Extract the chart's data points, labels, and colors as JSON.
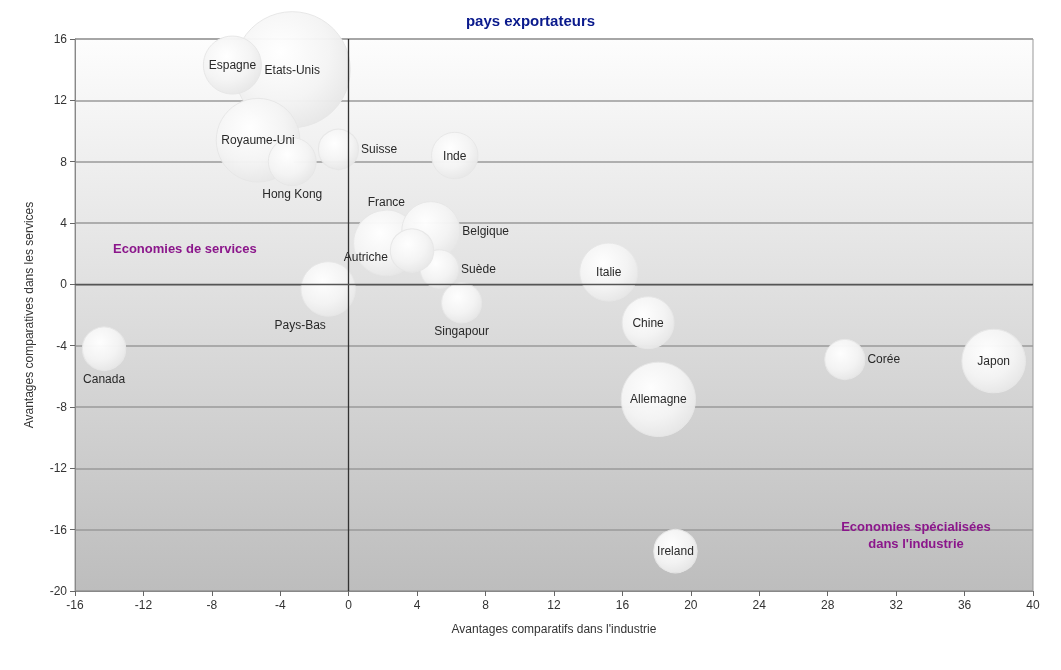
{
  "chart_data": {
    "type": "bubble",
    "title": "pays exportateurs",
    "xlabel": "Avantages comparatifs dans l'industrie",
    "ylabel": "Avantages comparatives dans les services",
    "annotations": [
      "Economies de services",
      "Economies spécialisées\ndans l'industrie"
    ],
    "xlim": [
      -16,
      40
    ],
    "xticks": [
      -16,
      -12,
      -8,
      -4,
      0,
      4,
      8,
      12,
      16,
      20,
      24,
      28,
      32,
      36,
      40
    ],
    "ylim": [
      -20,
      16
    ],
    "yticks": [
      -20,
      -16,
      -12,
      -8,
      -4,
      0,
      4,
      8,
      12,
      16
    ],
    "grid": "y",
    "legend": false,
    "marker": "circle",
    "ref_lines": [
      {
        "axis": "x",
        "value": 0,
        "color": "#333333"
      },
      {
        "axis": "y",
        "value": 0,
        "color": "#555555"
      }
    ],
    "series": [
      {
        "name": "Etats-Unis",
        "color": "#e6e6e6",
        "x": [
          -3.3
        ],
        "values": [
          14.0
        ],
        "sizes": [
          1
        ]
      },
      {
        "name": "Espagne",
        "color": "#e6e6e6",
        "x": [
          -6.8
        ],
        "values": [
          14.3
        ],
        "sizes": [
          0.25
        ]
      },
      {
        "name": "Royaume-Uni",
        "color": "#e6e6e6",
        "x": [
          -5.3
        ],
        "values": [
          9.4
        ],
        "sizes": [
          0.52
        ]
      },
      {
        "name": "Hong Kong",
        "color": "#e6e6e6",
        "x": [
          -3.3
        ],
        "values": [
          8.0
        ],
        "sizes": [
          0.17
        ]
      },
      {
        "name": "Suisse",
        "color": "#e6e6e6",
        "x": [
          -0.6
        ],
        "values": [
          8.8
        ],
        "sizes": [
          0.12
        ]
      },
      {
        "name": "Inde",
        "color": "#e6e6e6",
        "x": [
          6.2
        ],
        "values": [
          8.4
        ],
        "sizes": [
          0.16
        ]
      },
      {
        "name": "France",
        "color": "#e6e6e6",
        "x": [
          2.2
        ],
        "values": [
          2.7
        ],
        "sizes": [
          0.32
        ]
      },
      {
        "name": "Belgique",
        "color": "#e6e6e6",
        "x": [
          4.8
        ],
        "values": [
          3.5
        ],
        "sizes": [
          0.25
        ]
      },
      {
        "name": "Suède",
        "color": "#e6e6e6",
        "x": [
          5.3
        ],
        "values": [
          1.0
        ],
        "sizes": [
          0.11
        ]
      },
      {
        "name": "Singapour",
        "color": "#e6e6e6",
        "x": [
          6.6
        ],
        "values": [
          -1.2
        ],
        "sizes": [
          0.12
        ]
      },
      {
        "name": "Pays-Bas",
        "color": "#e6e6e6",
        "x": [
          -1.2
        ],
        "values": [
          -0.3
        ],
        "sizes": [
          0.22
        ]
      },
      {
        "name": "Italie",
        "color": "#e6e6e6",
        "x": [
          15.2
        ],
        "values": [
          0.8
        ],
        "sizes": [
          0.25
        ]
      },
      {
        "name": "Chine",
        "color": "#e6e6e6",
        "x": [
          17.5
        ],
        "values": [
          -2.5
        ],
        "sizes": [
          0.2
        ]
      },
      {
        "name": "Canada",
        "color": "#e6e6e6",
        "x": [
          -14.3
        ],
        "values": [
          -4.2
        ],
        "sizes": [
          0.14
        ]
      },
      {
        "name": "Corée",
        "color": "#e6e6e6",
        "x": [
          29.0
        ],
        "values": [
          -4.9
        ],
        "sizes": [
          0.12
        ]
      },
      {
        "name": "Japon",
        "color": "#e6e6e6",
        "x": [
          37.7
        ],
        "values": [
          -5.0
        ],
        "sizes": [
          0.3
        ]
      },
      {
        "name": "Allemagne",
        "color": "#e6e6e6",
        "x": [
          18.1
        ],
        "values": [
          -7.5
        ],
        "sizes": [
          0.41
        ]
      },
      {
        "name": "Ireland",
        "color": "#e6e6e6",
        "x": [
          19.1
        ],
        "values": [
          -17.4
        ],
        "sizes": [
          0.14
        ]
      },
      {
        "name": "Autriche",
        "color": "#e6e6e6",
        "x": [
          3.7
        ],
        "values": [
          2.2
        ],
        "sizes": [
          0.14
        ]
      }
    ]
  }
}
